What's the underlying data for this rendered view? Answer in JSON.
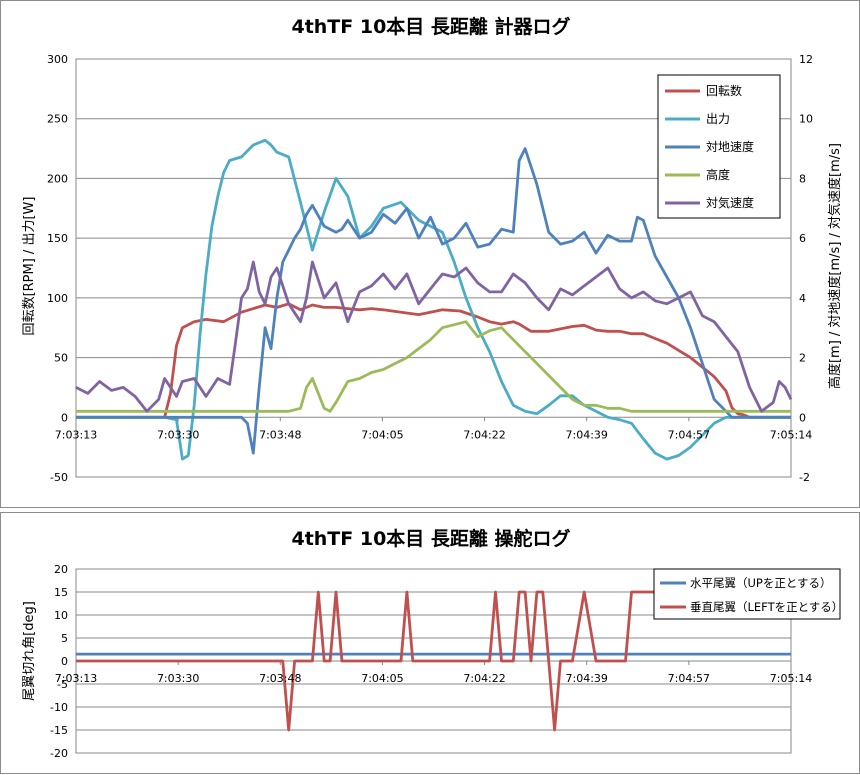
{
  "chart_data": [
    {
      "type": "line",
      "title": "4thTF 10本目 長距離 計器ログ",
      "ylabel_left": "回転数[RPM] / 出力[W]",
      "ylabel_right": "高度[m] / 対地速度[m/s] / 対気速度[m/s]",
      "x_tick_labels": [
        "7:03:13",
        "7:03:30",
        "7:03:48",
        "7:04:05",
        "7:04:22",
        "7:04:39",
        "7:04:57",
        "7:05:14"
      ],
      "xlim": [
        0,
        121
      ],
      "ylim_left": [
        -50,
        300
      ],
      "ylim_right": [
        -2,
        12
      ],
      "y_ticks_left": [
        "-50",
        "0",
        "50",
        "100",
        "150",
        "200",
        "250",
        "300"
      ],
      "y_ticks_right": [
        "-2",
        "0",
        "2",
        "4",
        "6",
        "8",
        "10",
        "12"
      ],
      "legend_position": "top-right",
      "series": [
        {
          "name": "回転数",
          "axis": "left",
          "color": "#c0504d",
          "x": [
            0,
            15,
            16,
            17,
            18,
            20,
            22,
            25,
            28,
            32,
            34,
            36,
            38,
            40,
            42,
            44,
            46,
            48,
            50,
            52,
            55,
            58,
            60,
            62,
            65,
            68,
            70,
            72,
            74,
            75,
            77,
            80,
            82,
            84,
            86,
            88,
            90,
            92,
            94,
            96,
            98,
            100,
            102,
            104,
            106,
            108,
            110,
            111,
            112,
            113,
            114,
            121
          ],
          "y": [
            0,
            0,
            20,
            60,
            75,
            80,
            82,
            80,
            88,
            94,
            92,
            95,
            90,
            94,
            92,
            92,
            91,
            90,
            91,
            90,
            88,
            86,
            88,
            90,
            89,
            84,
            80,
            78,
            80,
            78,
            72,
            72,
            74,
            76,
            77,
            73,
            72,
            72,
            70,
            70,
            66,
            62,
            56,
            50,
            42,
            34,
            22,
            8,
            3,
            2,
            0,
            0
          ]
        },
        {
          "name": "出力",
          "axis": "left",
          "color": "#4bacc6",
          "x": [
            0,
            15,
            17,
            18,
            19,
            20,
            21,
            22,
            23,
            24,
            25,
            26,
            28,
            30,
            32,
            33,
            34,
            36,
            38,
            40,
            42,
            44,
            46,
            48,
            50,
            52,
            55,
            58,
            60,
            62,
            64,
            66,
            68,
            70,
            72,
            74,
            76,
            78,
            80,
            82,
            84,
            86,
            88,
            90,
            92,
            94,
            96,
            98,
            100,
            102,
            104,
            106,
            108,
            110,
            112,
            114,
            121
          ],
          "y": [
            0,
            0,
            -2,
            -35,
            -32,
            10,
            70,
            120,
            160,
            185,
            205,
            215,
            218,
            228,
            232,
            228,
            222,
            218,
            180,
            140,
            172,
            200,
            185,
            150,
            160,
            175,
            180,
            165,
            160,
            155,
            130,
            100,
            75,
            55,
            30,
            10,
            5,
            3,
            10,
            18,
            18,
            10,
            5,
            0,
            -2,
            -5,
            -18,
            -30,
            -35,
            -32,
            -25,
            -15,
            -5,
            0,
            0,
            0,
            0
          ]
        },
        {
          "name": "対地速度",
          "axis": "right",
          "color": "#4f81bd",
          "x": [
            0,
            28,
            29,
            30,
            31,
            32,
            33,
            34,
            35,
            36,
            37,
            38,
            39,
            40,
            42,
            44,
            45,
            46,
            48,
            50,
            52,
            54,
            56,
            58,
            60,
            62,
            64,
            66,
            68,
            70,
            72,
            74,
            75,
            76,
            78,
            80,
            82,
            84,
            86,
            88,
            90,
            92,
            94,
            95,
            96,
            98,
            100,
            102,
            104,
            106,
            108,
            110,
            111,
            112,
            113,
            114,
            121
          ],
          "y": [
            0,
            0,
            -0.2,
            -1.2,
            1,
            3,
            2.3,
            4,
            5.2,
            5.6,
            6,
            6.3,
            6.8,
            7.1,
            6.4,
            6.2,
            6.3,
            6.6,
            6,
            6.2,
            6.8,
            6.5,
            7,
            6,
            6.7,
            5.8,
            6,
            6.5,
            5.7,
            5.8,
            6.3,
            6.2,
            8.6,
            9,
            7.8,
            6.2,
            5.8,
            5.9,
            6.2,
            5.5,
            6.1,
            5.9,
            5.9,
            6.7,
            6.6,
            5.4,
            4.7,
            4,
            3,
            1.8,
            0.6,
            0.2,
            0,
            0,
            0,
            0,
            0
          ]
        },
        {
          "name": "高度",
          "axis": "right",
          "color": "#9bbb59",
          "x": [
            0,
            36,
            38,
            39,
            40,
            41,
            42,
            43,
            44,
            46,
            48,
            50,
            52,
            54,
            56,
            58,
            60,
            62,
            64,
            66,
            68,
            70,
            72,
            74,
            76,
            78,
            80,
            82,
            84,
            86,
            88,
            90,
            92,
            94,
            96,
            98,
            100,
            121
          ],
          "y": [
            0.2,
            0.2,
            0.3,
            1,
            1.3,
            0.8,
            0.3,
            0.2,
            0.5,
            1.2,
            1.3,
            1.5,
            1.6,
            1.8,
            2,
            2.3,
            2.6,
            3,
            3.1,
            3.2,
            2.7,
            2.9,
            3,
            2.6,
            2.2,
            1.8,
            1.4,
            1,
            0.6,
            0.4,
            0.4,
            0.3,
            0.3,
            0.2,
            0.2,
            0.2,
            0.2,
            0.2
          ]
        },
        {
          "name": "対気速度",
          "axis": "right",
          "color": "#8064a2",
          "x": [
            0,
            2,
            4,
            6,
            8,
            10,
            12,
            14,
            15,
            16,
            17,
            18,
            20,
            22,
            24,
            26,
            27,
            28,
            29,
            30,
            31,
            32,
            33,
            34,
            36,
            38,
            39,
            40,
            42,
            44,
            46,
            48,
            50,
            52,
            54,
            56,
            58,
            60,
            62,
            64,
            66,
            68,
            70,
            72,
            74,
            76,
            78,
            80,
            82,
            84,
            86,
            88,
            90,
            92,
            94,
            96,
            98,
            100,
            102,
            104,
            106,
            108,
            110,
            112,
            114,
            116,
            118,
            119,
            120,
            121
          ],
          "y": [
            1,
            0.8,
            1.2,
            0.9,
            1,
            0.7,
            0.2,
            0.6,
            1.3,
            1,
            0.7,
            1.2,
            1.3,
            0.7,
            1.3,
            1.1,
            2.5,
            4,
            4.3,
            5.2,
            4.2,
            3.8,
            4.7,
            5,
            3.8,
            3.2,
            4,
            5.2,
            4,
            4.5,
            3.2,
            4.2,
            4.4,
            4.8,
            4.3,
            4.8,
            3.8,
            4.3,
            4.8,
            4.7,
            5,
            4.5,
            4.2,
            4.2,
            4.8,
            4.5,
            4,
            3.6,
            4.3,
            4.1,
            4.4,
            4.7,
            5,
            4.3,
            4,
            4.2,
            3.9,
            3.8,
            4,
            4.2,
            3.4,
            3.2,
            2.7,
            2.2,
            1,
            0.2,
            0.5,
            1.2,
            1,
            0.6
          ]
        }
      ]
    },
    {
      "type": "line",
      "title": "4thTF 10本目 長距離 操舵ログ",
      "ylabel": "尾翼切れ角[deg]",
      "x_tick_labels": [
        "7:03:13",
        "7:03:30",
        "7:03:48",
        "7:04:05",
        "7:04:22",
        "7:04:39",
        "7:04:57",
        "7:05:14"
      ],
      "xlim": [
        0,
        121
      ],
      "ylim": [
        -20,
        20
      ],
      "y_ticks": [
        "20",
        "15",
        "10",
        "5",
        "0",
        "-5",
        "-10",
        "-15",
        "-20"
      ],
      "legend_position": "top-right",
      "series": [
        {
          "name": "水平尾翼（UPを正とする）",
          "color": "#4f81bd",
          "x": [
            0,
            121
          ],
          "y": [
            1.5,
            1.5
          ]
        },
        {
          "name": "垂直尾翼（LEFTを正とする）",
          "color": "#c0504d",
          "x": [
            0,
            35,
            36,
            37,
            38,
            39,
            40,
            41,
            42,
            43,
            44,
            45,
            46,
            47,
            48,
            55,
            56,
            57,
            58,
            70,
            71,
            72,
            73,
            74,
            75,
            76,
            77,
            78,
            79,
            80,
            81,
            82,
            83,
            84,
            86,
            88,
            89,
            90,
            91,
            92,
            93,
            94,
            98,
            99,
            100,
            121
          ],
          "y": [
            0,
            0,
            -15,
            0,
            0,
            0,
            0,
            15,
            0,
            0,
            15,
            0,
            0,
            0,
            0,
            0,
            15,
            0,
            0,
            0,
            15,
            0,
            0,
            0,
            15,
            15,
            0,
            15,
            15,
            0,
            -15,
            0,
            0,
            0,
            15,
            0,
            0,
            0,
            0,
            0,
            0,
            15,
            15,
            15,
            15,
            15
          ]
        }
      ]
    }
  ]
}
